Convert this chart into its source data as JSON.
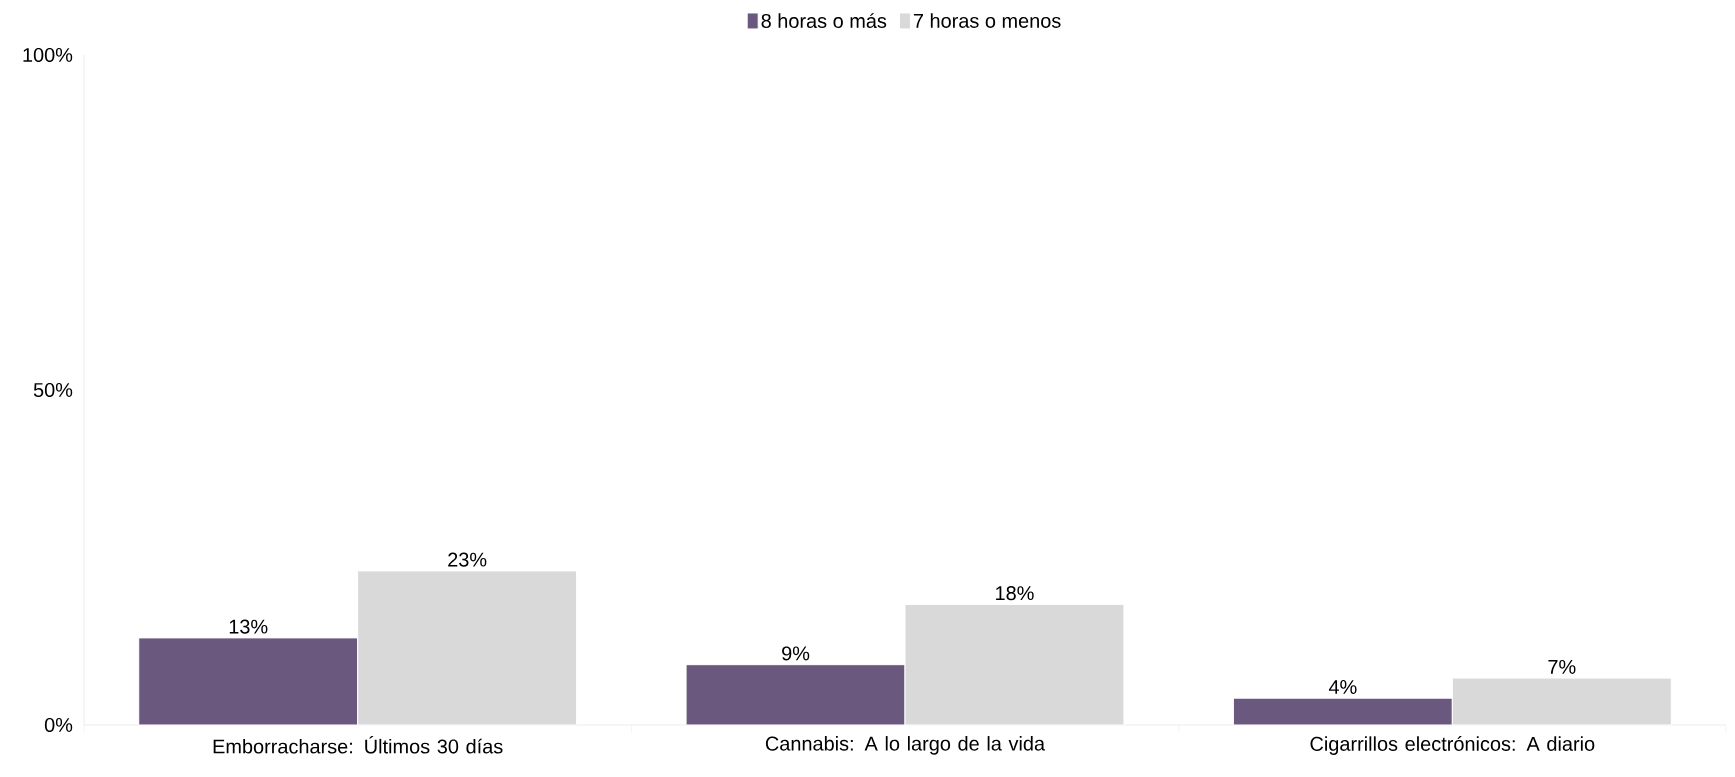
{
  "chart_data": {
    "type": "bar",
    "categories": [
      "Emborracharse: Últimos 30 días",
      "Cannabis: A lo largo de la vida",
      "Cigarrillos electrónicos: A diario"
    ],
    "series": [
      {
        "name": "8 horas o más",
        "color": "#6a587e",
        "values": [
          13,
          9,
          4
        ],
        "value_labels": [
          "13%",
          "9%",
          "4%"
        ]
      },
      {
        "name": "7 horas o menos",
        "color": "#d9d9d9",
        "values": [
          23,
          18,
          7
        ],
        "value_labels": [
          "23%",
          "18%",
          "7%"
        ]
      }
    ],
    "ylim": [
      0,
      100
    ],
    "yticks": [
      {
        "value": 0,
        "label": "0%"
      },
      {
        "value": 50,
        "label": "50%"
      },
      {
        "value": 100,
        "label": "100%"
      }
    ],
    "legend": "top",
    "grid": false
  }
}
